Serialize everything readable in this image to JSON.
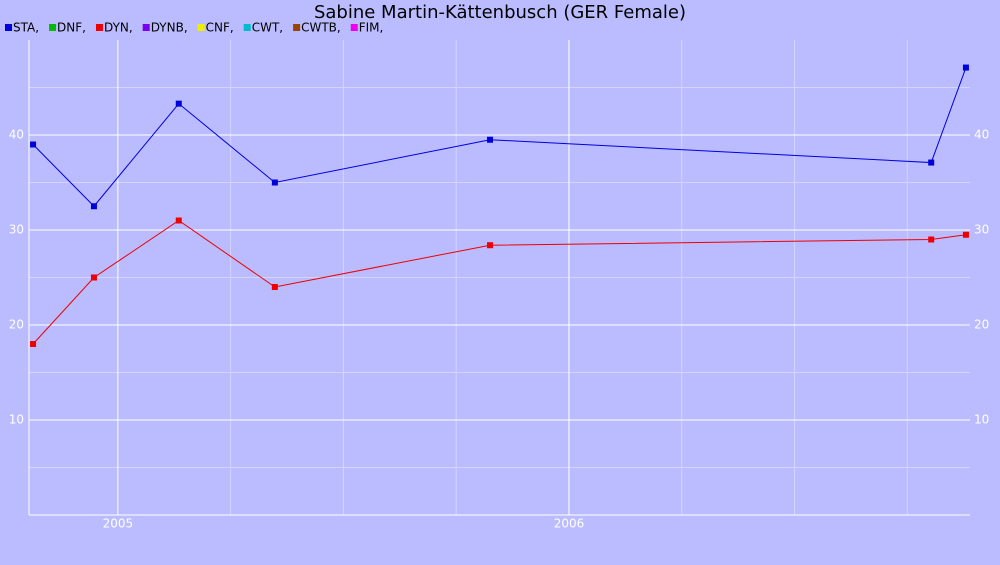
{
  "chart_data": {
    "type": "line",
    "title": "Sabine Martin-Kättenbusch (GER Female)",
    "legend": [
      {
        "label": "STA,",
        "color": "#0000dd"
      },
      {
        "label": "DNF,",
        "color": "#00bb00"
      },
      {
        "label": "DYN,",
        "color": "#ee0000"
      },
      {
        "label": "DYNB,",
        "color": "#7700ee"
      },
      {
        "label": "CNF,",
        "color": "#eeee00"
      },
      {
        "label": "CWT,",
        "color": "#00bbcc"
      },
      {
        "label": "CWTB,",
        "color": "#994400"
      },
      {
        "label": "FIM,",
        "color": "#ee00ee"
      }
    ],
    "x": [
      2004.812,
      2004.947,
      2005.135,
      2005.348,
      2005.825,
      2006.803,
      2006.88
    ],
    "series": [
      {
        "color": "#0000dd",
        "values": [
          39,
          32.5,
          43.3,
          35,
          39.5,
          37.1,
          47.1
        ]
      },
      {
        "color": "#ee0000",
        "values": [
          18,
          25,
          31,
          24,
          28.4,
          29,
          29.5
        ]
      }
    ],
    "xlim": [
      2004.803,
      2006.889
    ],
    "xticks": [
      2005,
      2006
    ],
    "xminorticks": [
      2005.25,
      2005.5,
      2005.75,
      2006.25,
      2006.5,
      2006.75
    ],
    "ylim": [
      0,
      50
    ],
    "yticks": [
      10,
      20,
      30,
      40
    ],
    "yminorticks": [
      5,
      15,
      25,
      35,
      45
    ],
    "grid": true
  }
}
